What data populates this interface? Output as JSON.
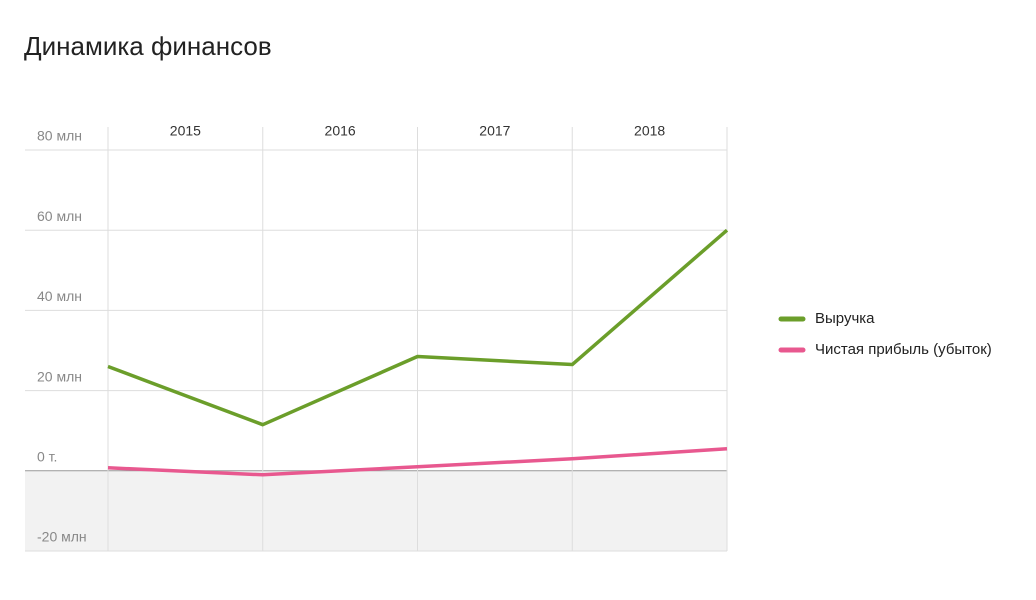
{
  "chart_data": {
    "type": "line",
    "title": "Динамика финансов",
    "categories": [
      "2015",
      "2016",
      "2017",
      "2018",
      null
    ],
    "series": [
      {
        "name": "Выручка",
        "color": "#6b9e2a",
        "values": [
          26,
          11.5,
          28.5,
          26.5,
          60
        ]
      },
      {
        "name": "Чистая прибыль (убыток)",
        "color": "#e8588f",
        "values": [
          0.75,
          -1,
          1,
          3,
          5.5
        ]
      }
    ],
    "ylim": [
      -20,
      80
    ],
    "yticks": [
      {
        "value": -20,
        "label": "-20 млн"
      },
      {
        "value": 0,
        "label": "0 т."
      },
      {
        "value": 20,
        "label": "20 млн"
      },
      {
        "value": 40,
        "label": "40 млн"
      },
      {
        "value": 60,
        "label": "60 млн"
      },
      {
        "value": 80,
        "label": "80 млн"
      }
    ],
    "grid": true,
    "legend": "right"
  }
}
